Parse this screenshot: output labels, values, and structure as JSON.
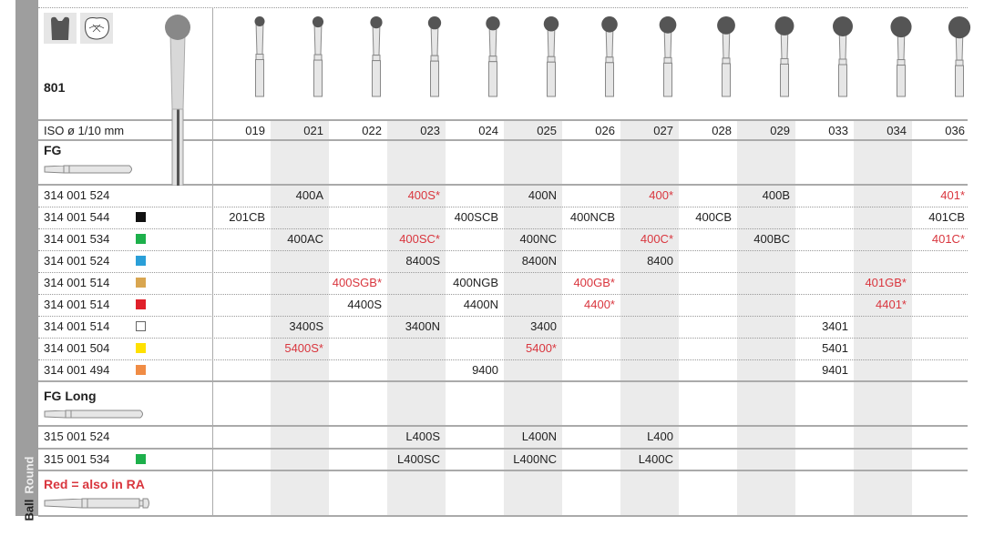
{
  "category": {
    "word1": "Ball",
    "word2": "Round"
  },
  "product": "801",
  "iso_label": "ISO ø 1/10 mm",
  "sizes": [
    "019",
    "021",
    "022",
    "023",
    "024",
    "025",
    "026",
    "027",
    "028",
    "029",
    "033",
    "034",
    "036"
  ],
  "sections": {
    "fg": "FG",
    "fg_long": "FG Long",
    "legend": "Red = also in RA"
  },
  "colors": {
    "red_text": "#d9363e",
    "shade": "#ebebeb",
    "black": "#111111",
    "green": "#1db04b",
    "blue": "#2a9fd8",
    "gold": "#d9a650",
    "red": "#e0202a",
    "white": "#ffffff",
    "yellow": "#ffe100",
    "orange": "#f08c45"
  },
  "rows": [
    {
      "code": "314 001 524",
      "color": null,
      "cells": [
        "",
        "400A",
        "",
        "400S*",
        "",
        "400N",
        "",
        "400*",
        "",
        "400B",
        "",
        "",
        "401*"
      ]
    },
    {
      "code": "314 001 544",
      "color": "black",
      "cells": [
        "201CB",
        "",
        "",
        "",
        "400SCB",
        "",
        "400NCB",
        "",
        "400CB",
        "",
        "",
        "",
        "401CB"
      ]
    },
    {
      "code": "314 001 534",
      "color": "green",
      "cells": [
        "",
        "400AC",
        "",
        "400SC*",
        "",
        "400NC",
        "",
        "400C*",
        "",
        "400BC",
        "",
        "",
        "401C*"
      ]
    },
    {
      "code": "314 001 524",
      "color": "blue",
      "cells": [
        "",
        "",
        "",
        "8400S",
        "",
        "8400N",
        "",
        "8400",
        "",
        "",
        "",
        "",
        ""
      ]
    },
    {
      "code": "314 001 514",
      "color": "gold",
      "cells": [
        "",
        "",
        "400SGB*",
        "",
        "400NGB",
        "",
        "400GB*",
        "",
        "",
        "",
        "",
        "401GB*",
        ""
      ]
    },
    {
      "code": "314 001 514",
      "color": "red",
      "cells": [
        "",
        "",
        "4400S",
        "",
        "4400N",
        "",
        "4400*",
        "",
        "",
        "",
        "",
        "4401*",
        ""
      ]
    },
    {
      "code": "314 001 514",
      "color": "white",
      "cells": [
        "",
        "3400S",
        "",
        "3400N",
        "",
        "3400",
        "",
        "",
        "",
        "",
        "3401",
        "",
        ""
      ]
    },
    {
      "code": "314 001 504",
      "color": "yellow",
      "cells": [
        "",
        "5400S*",
        "",
        "",
        "",
        "5400*",
        "",
        "",
        "",
        "",
        "5401",
        "",
        ""
      ]
    },
    {
      "code": "314 001 494",
      "color": "orange",
      "cells": [
        "",
        "",
        "",
        "",
        "9400",
        "",
        "",
        "",
        "",
        "",
        "9401",
        "",
        ""
      ]
    }
  ],
  "long_rows": [
    {
      "code": "315 001 524",
      "color": null,
      "cells": [
        "",
        "",
        "",
        "L400S",
        "",
        "L400N",
        "",
        "L400",
        "",
        "",
        "",
        "",
        ""
      ]
    },
    {
      "code": "315 001 534",
      "color": "green",
      "cells": [
        "",
        "",
        "",
        "L400SC",
        "",
        "L400NC",
        "",
        "L400C",
        "",
        "",
        "",
        "",
        ""
      ]
    }
  ],
  "icons": [
    "crown-icon",
    "occlusal-tooth-icon",
    "bur-icon"
  ]
}
